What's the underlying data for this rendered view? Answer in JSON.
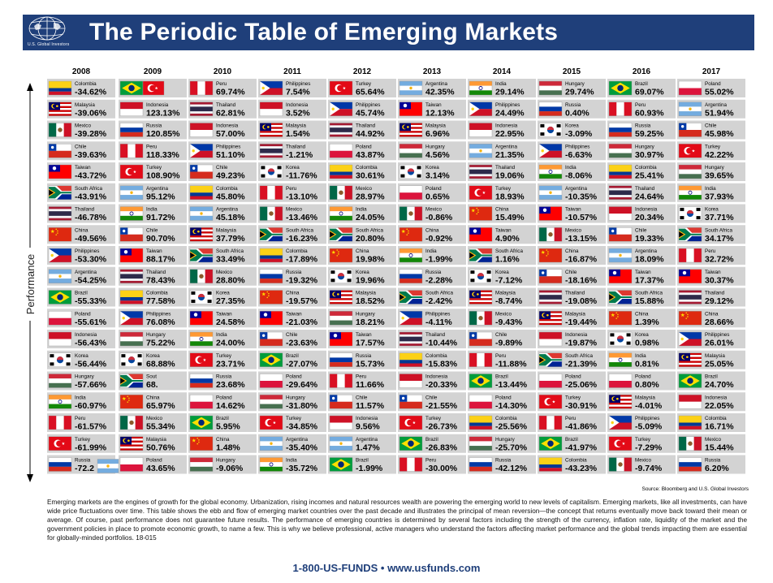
{
  "header": {
    "logo_text": "U.S. Global Investors",
    "title": "The Periodic Table of Emerging Markets"
  },
  "source": "Source: Bloomberg and U.S. Global Investors",
  "description": "Emerging markets are the engines of growth for the global economy. Urbanization, rising incomes and natural resources wealth are powering the emerging world to new levels of capitalism. Emerging markets, like all investments, can have wide price fluctuations over time. This table shows the ebb and flow of emerging market countries over the past decade and illustrates the principal of mean reversion—the concept that returns eventually move back toward their mean or average. Of course, past performance does not guarantee future results. The performance of emerging countries is determined by several factors including the strength of the currency, inflation rate, liquidity of the market and the government policies in place to promote economic growth, to name a few. This is why we believe professional, active managers who understand the factors affecting market performance and the global trends impacting them are essential for globally-minded portfolios. 18-015",
  "contact": "1-800-US-FUNDS • www.usfunds.com",
  "colors": {
    "header_bg": "#1f3f7a",
    "cell_bg": "#d3d3d3"
  },
  "chart_data": {
    "type": "table",
    "title": "The Periodic Table of Emerging Markets",
    "ylabel": "Performance",
    "years": [
      "2008",
      "2009",
      "2010",
      "2011",
      "2012",
      "2013",
      "2014",
      "2015",
      "2016",
      "2017"
    ],
    "columns": [
      [
        [
          "Colombia",
          "-34.62%"
        ],
        [
          "Malaysia",
          "-39.06%"
        ],
        [
          "Mexico",
          "-39.28%"
        ],
        [
          "Chile",
          "-39.63%"
        ],
        [
          "Taiwan",
          "-43.72%"
        ],
        [
          "South Africa",
          "-43.91%"
        ],
        [
          "Thailand",
          "-46.78%"
        ],
        [
          "China",
          "-49.56%"
        ],
        [
          "Philippines",
          "-53.30%"
        ],
        [
          "Argentina",
          "-54.25%"
        ],
        [
          "Brazil",
          "-55.33%"
        ],
        [
          "Poland",
          "-55.61%"
        ],
        [
          "Indonesia",
          "-56.43%"
        ],
        [
          "Korea",
          "-56.44%"
        ],
        [
          "Hungary",
          "-57.66%"
        ],
        [
          "India",
          "-60.97%"
        ],
        [
          "Peru",
          "-61.57%"
        ],
        [
          "Turkey",
          "-61.99%"
        ],
        [
          "Russia",
          "-72.2"
        ]
      ],
      [
        [
          "",
          "92%"
        ],
        [
          "Indonesia",
          "123.13%"
        ],
        [
          "Russia",
          "120.85%"
        ],
        [
          "Peru",
          "118.33%"
        ],
        [
          "Turkey",
          "108.90%"
        ],
        [
          "Argentina",
          "95.12%"
        ],
        [
          "India",
          "91.72%"
        ],
        [
          "Chile",
          "90.70%"
        ],
        [
          "Taiwan",
          "88.17%"
        ],
        [
          "Thailand",
          "78.43%"
        ],
        [
          "Colombia",
          "77.58%"
        ],
        [
          "Philippines",
          "76.08%"
        ],
        [
          "Hungary",
          "75.22%"
        ],
        [
          "Korea",
          "68.88%"
        ],
        [
          "Sout",
          "68."
        ],
        [
          "China",
          "65.97%"
        ],
        [
          "Mexico",
          "55.34%"
        ],
        [
          "Malaysia",
          "50.76%"
        ],
        [
          "Poland",
          "43.65%"
        ]
      ],
      [
        [
          "Peru",
          "69.74%"
        ],
        [
          "Thailand",
          "62.81%"
        ],
        [
          "Indonesia",
          "57.00%"
        ],
        [
          "Philippines",
          "51.10%"
        ],
        [
          "Chile",
          "49.23%"
        ],
        [
          "Colombia",
          "45.80%"
        ],
        [
          "Argentina",
          "45.18%"
        ],
        [
          "Malaysia",
          "37.79%"
        ],
        [
          "South Africa",
          "33.49%"
        ],
        [
          "Mexico",
          "28.80%"
        ],
        [
          "Korea",
          "27.35%"
        ],
        [
          "Taiwan",
          "24.58%"
        ],
        [
          "India",
          "24.00%"
        ],
        [
          "Turkey",
          "23.71%"
        ],
        [
          "Russia",
          "23.68%"
        ],
        [
          "Poland",
          "14.62%"
        ],
        [
          "Brazil",
          "5.95%"
        ],
        [
          "China",
          "1.48%"
        ],
        [
          "Hungary",
          "-9.06%"
        ]
      ],
      [
        [
          "Philippines",
          "7.54%"
        ],
        [
          "Indonesia",
          "3.52%"
        ],
        [
          "Malaysia",
          "1.54%"
        ],
        [
          "Thailand",
          "-1.21%"
        ],
        [
          "Korea",
          "-11.76%"
        ],
        [
          "Peru",
          "-13.10%"
        ],
        [
          "Mexico",
          "-13.46%"
        ],
        [
          "South Africa",
          "-16.23%"
        ],
        [
          "Colombia",
          "-17.89%"
        ],
        [
          "Russia",
          "-19.32%"
        ],
        [
          "China",
          "-19.57%"
        ],
        [
          "Taiwan",
          "-21.03%"
        ],
        [
          "Chile",
          "-23.63%"
        ],
        [
          "Brazil",
          "-27.07%"
        ],
        [
          "Poland",
          "-29.64%"
        ],
        [
          "Hungary",
          "-31.80%"
        ],
        [
          "Turkey",
          "-34.85%"
        ],
        [
          "Argentina",
          "-35.40%"
        ],
        [
          "India",
          "-35.72%"
        ]
      ],
      [
        [
          "Turkey",
          "65.64%"
        ],
        [
          "Philippines",
          "45.74%"
        ],
        [
          "Thailand",
          "44.92%"
        ],
        [
          "Poland",
          "43.87%"
        ],
        [
          "Colombia",
          "30.61%"
        ],
        [
          "Mexico",
          "28.97%"
        ],
        [
          "India",
          "24.05%"
        ],
        [
          "South Africa",
          "20.80%"
        ],
        [
          "China",
          "19.98%"
        ],
        [
          "Korea",
          "19.96%"
        ],
        [
          "Malaysia",
          "18.52%"
        ],
        [
          "Hungary",
          "18.21%"
        ],
        [
          "Taiwan",
          "17.57%"
        ],
        [
          "Russia",
          "15.73%"
        ],
        [
          "Peru",
          "11.66%"
        ],
        [
          "Chile",
          "11.57%"
        ],
        [
          "Indonesia",
          "9.56%"
        ],
        [
          "Argentina",
          "1.47%"
        ],
        [
          "Brazil",
          "-1.99%"
        ]
      ],
      [
        [
          "Argentina",
          "42.35%"
        ],
        [
          "Taiwan",
          "12.13%"
        ],
        [
          "Malaysia",
          "6.96%"
        ],
        [
          "Hungary",
          "4.56%"
        ],
        [
          "Korea",
          "3.14%"
        ],
        [
          "Poland",
          "0.65%"
        ],
        [
          "Mexico",
          "-0.86%"
        ],
        [
          "China",
          "-0.92%"
        ],
        [
          "India",
          "-1.99%"
        ],
        [
          "Russia",
          "-2.28%"
        ],
        [
          "South Africa",
          "-2.42%"
        ],
        [
          "Philippines",
          "-4.11%"
        ],
        [
          "Thailand",
          "-10.44%"
        ],
        [
          "Colombia",
          "-15.83%"
        ],
        [
          "Indonesia",
          "-20.33%"
        ],
        [
          "Chile",
          "-21.55%"
        ],
        [
          "Turkey",
          "-26.73%"
        ],
        [
          "Brazil",
          "-26.83%"
        ],
        [
          "Peru",
          "-30.00%"
        ]
      ],
      [
        [
          "India",
          "29.14%"
        ],
        [
          "Philippines",
          "24.49%"
        ],
        [
          "Indonesia",
          "22.95%"
        ],
        [
          "Argentina",
          "21.35%"
        ],
        [
          "Thailand",
          "19.06%"
        ],
        [
          "Turkey",
          "18.93%"
        ],
        [
          "China",
          "15.49%"
        ],
        [
          "Taiwan",
          "4.90%"
        ],
        [
          "South Africa",
          "1.16%"
        ],
        [
          "Korea",
          "-7.12%"
        ],
        [
          "Malaysia",
          "-8.74%"
        ],
        [
          "Mexico",
          "-9.43%"
        ],
        [
          "Chile",
          "-9.89%"
        ],
        [
          "Peru",
          "-11.88%"
        ],
        [
          "Brazil",
          "-13.44%"
        ],
        [
          "Poland",
          "-14.30%"
        ],
        [
          "Colombia",
          "-25.56%"
        ],
        [
          "Hungary",
          "-25.70%"
        ],
        [
          "Russia",
          "-42.12%"
        ]
      ],
      [
        [
          "Hungary",
          "29.74%"
        ],
        [
          "Russia",
          "0.40%"
        ],
        [
          "Korea",
          "-3.09%"
        ],
        [
          "Philippines",
          "-6.63%"
        ],
        [
          "India",
          "-8.06%"
        ],
        [
          "Argentina",
          "-10.35%"
        ],
        [
          "Taiwan",
          "-10.57%"
        ],
        [
          "Mexico",
          "-13.15%"
        ],
        [
          "China",
          "-16.87%"
        ],
        [
          "Chile",
          "-18.16%"
        ],
        [
          "Thailand",
          "-19.08%"
        ],
        [
          "Malaysia",
          "-19.44%"
        ],
        [
          "Indonesia",
          "-19.87%"
        ],
        [
          "South Africa",
          "-21.39%"
        ],
        [
          "Poland",
          "-25.06%"
        ],
        [
          "Turkey",
          "-30.91%"
        ],
        [
          "Peru",
          "-41.86%"
        ],
        [
          "Brazil",
          "-41.97%"
        ],
        [
          "Colombia",
          "-43.23%"
        ]
      ],
      [
        [
          "Brazil",
          "69.07%"
        ],
        [
          "Peru",
          "60.93%"
        ],
        [
          "Russia",
          "59.25%"
        ],
        [
          "Hungary",
          "30.97%"
        ],
        [
          "Colombia",
          "25.41%"
        ],
        [
          "Thailand",
          "24.64%"
        ],
        [
          "Indonesia",
          "20.34%"
        ],
        [
          "Chile",
          "19.33%"
        ],
        [
          "Argentina",
          "18.09%"
        ],
        [
          "Taiwan",
          "17.37%"
        ],
        [
          "South Africa",
          "15.88%"
        ],
        [
          "China",
          "1.39%"
        ],
        [
          "Korea",
          "0.98%"
        ],
        [
          "India",
          "0.81%"
        ],
        [
          "Poland",
          "0.80%"
        ],
        [
          "Malaysia",
          "-4.01%"
        ],
        [
          "Philippines",
          "-5.09%"
        ],
        [
          "Turkey",
          "-7.29%"
        ],
        [
          "Mexico",
          "-9.74%"
        ]
      ],
      [
        [
          "Poland",
          "55.02%"
        ],
        [
          "Argentina",
          "51.94%"
        ],
        [
          "Chile",
          "45.98%"
        ],
        [
          "Turkey",
          "42.22%"
        ],
        [
          "Hungary",
          "39.65%"
        ],
        [
          "India",
          "37.93%"
        ],
        [
          "Korea",
          "37.71%"
        ],
        [
          "South Africa",
          "34.17%"
        ],
        [
          "Peru",
          "32.72%"
        ],
        [
          "Taiwan",
          "30.37%"
        ],
        [
          "Thailand",
          "29.12%"
        ],
        [
          "China",
          "28.66%"
        ],
        [
          "Philippines",
          "26.01%"
        ],
        [
          "Malaysia",
          "25.05%"
        ],
        [
          "Brazil",
          "24.70%"
        ],
        [
          "Indonesia",
          "22.05%"
        ],
        [
          "Colombia",
          "16.71%"
        ],
        [
          "Mexico",
          "15.44%"
        ],
        [
          "Russia",
          "6.20%"
        ]
      ]
    ],
    "overlapping_flags": [
      {
        "year": "2009",
        "row": 0,
        "country": "Brazil"
      },
      {
        "year": "2009",
        "row": 0,
        "country": "Turkey"
      },
      {
        "year": "2008",
        "row": 18,
        "country": "Argentina"
      },
      {
        "year": "2009",
        "row": 14,
        "country": "South Africa"
      }
    ]
  }
}
